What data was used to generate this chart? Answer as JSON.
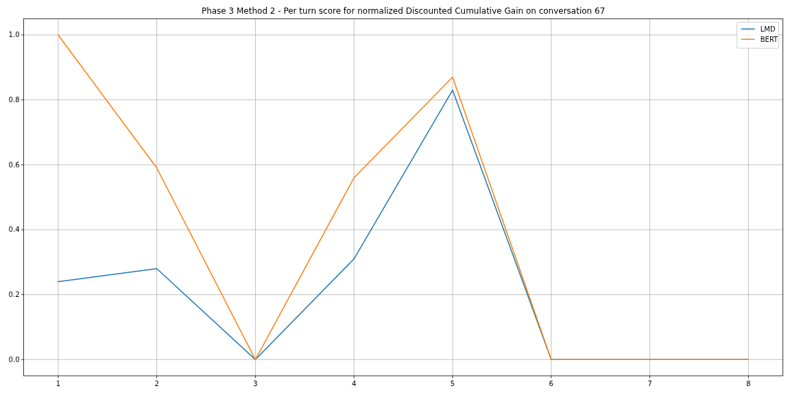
{
  "chart_data": {
    "type": "line",
    "title": "Phase 3 Method 2 - Per turn score for normalized Discounted Cumulative Gain on conversation 67",
    "x": [
      1,
      2,
      3,
      4,
      5,
      6,
      7,
      8
    ],
    "series": [
      {
        "name": "LMD",
        "color": "#1f77b4",
        "values": [
          0.24,
          0.28,
          0,
          0.31,
          0.83,
          0,
          0,
          0
        ]
      },
      {
        "name": "BERT",
        "color": "#ff7f0e",
        "values": [
          1.0,
          0.59,
          0,
          0.56,
          0.87,
          0,
          0,
          0
        ]
      }
    ],
    "xlim": [
      0.65,
      8.35
    ],
    "ylim": [
      -0.05,
      1.05
    ],
    "xticks": [
      1,
      2,
      3,
      4,
      5,
      6,
      7,
      8
    ],
    "yticks": [
      {
        "value": 0,
        "label": "0.0"
      },
      {
        "value": 0.2,
        "label": "0.2"
      },
      {
        "value": 0.4,
        "label": "0.4"
      },
      {
        "value": 0.6,
        "label": "0.6"
      },
      {
        "value": 0.8,
        "label": "0.8"
      },
      {
        "value": 1,
        "label": "1.0"
      }
    ],
    "grid": true,
    "legend": "top right",
    "line_style": "solid",
    "marker": "none"
  }
}
